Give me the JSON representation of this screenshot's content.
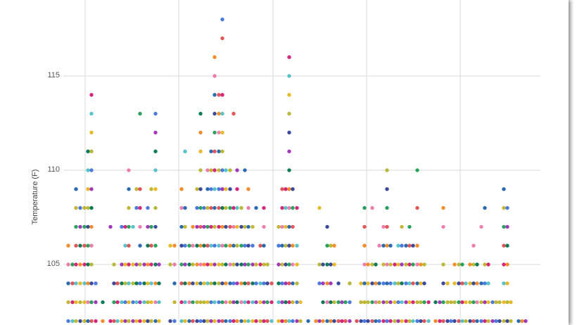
{
  "chart_data": {
    "type": "scatter",
    "ylabel": "Temperature (F)",
    "yticks": [
      105,
      110,
      115
    ],
    "ylim": [
      101.9,
      119.1
    ],
    "x_gridlines": 6,
    "grid": true,
    "colors": [
      "#4e79dd",
      "#e15759",
      "#f28e2b",
      "#e7ba2a",
      "#c2b635",
      "#2ca25f",
      "#0e7a5a",
      "#57c3c8",
      "#2b6cb0",
      "#3b4a99",
      "#a23ab8",
      "#d4287a",
      "#ec7fae",
      "#b8b83a"
    ],
    "columns": [
      {
        "x": 97,
        "values": [
          102,
          103,
          104,
          105,
          106
        ]
      },
      {
        "x": 103,
        "values": [
          102,
          103,
          104,
          105
        ]
      },
      {
        "x": 108,
        "values": [
          102,
          103,
          104,
          105,
          106,
          107,
          108,
          109
        ]
      },
      {
        "x": 114,
        "values": [
          102,
          103,
          104,
          105,
          106,
          107,
          108
        ]
      },
      {
        "x": 120,
        "values": [
          102,
          103,
          104,
          105,
          106,
          107,
          108
        ]
      },
      {
        "x": 125,
        "values": [
          102,
          103,
          104,
          105,
          106,
          107,
          108,
          109,
          110,
          111
        ]
      },
      {
        "x": 130,
        "values": [
          102,
          103,
          104,
          105,
          106,
          107,
          108,
          109,
          110,
          111,
          112,
          113,
          114
        ]
      },
      {
        "x": 136,
        "values": [
          102,
          103,
          104
        ]
      },
      {
        "x": 146,
        "values": [
          102,
          103
        ]
      },
      {
        "x": 157,
        "values": [
          102,
          107
        ]
      },
      {
        "x": 162,
        "values": [
          102,
          103,
          104,
          105
        ]
      },
      {
        "x": 167,
        "values": [
          102,
          103,
          104
        ]
      },
      {
        "x": 173,
        "values": [
          102,
          103,
          104,
          105,
          107
        ]
      },
      {
        "x": 178,
        "values": [
          102,
          103,
          104,
          105,
          106,
          107
        ]
      },
      {
        "x": 183,
        "values": [
          102,
          103,
          104,
          105,
          106,
          107,
          108,
          109,
          110
        ]
      },
      {
        "x": 189,
        "values": [
          102,
          103,
          104,
          105,
          107
        ]
      },
      {
        "x": 194,
        "values": [
          102,
          103,
          104,
          105,
          108,
          109
        ]
      },
      {
        "x": 199,
        "values": [
          102,
          103,
          104,
          105,
          106,
          107,
          108,
          109,
          113
        ]
      },
      {
        "x": 205,
        "values": [
          102,
          103,
          104,
          105
        ]
      },
      {
        "x": 210,
        "values": [
          102,
          103,
          104,
          105,
          106,
          107,
          108
        ]
      },
      {
        "x": 215,
        "values": [
          102,
          103,
          104,
          105,
          106,
          107,
          109
        ]
      },
      {
        "x": 221,
        "values": [
          102,
          103,
          104,
          105,
          106,
          107,
          108,
          109,
          110,
          111,
          112,
          113
        ]
      },
      {
        "x": 226,
        "values": [
          102,
          103,
          104,
          105
        ]
      },
      {
        "x": 242,
        "values": [
          102,
          105,
          106
        ]
      },
      {
        "x": 248,
        "values": [
          102,
          103,
          104,
          105,
          106
        ]
      },
      {
        "x": 258,
        "values": [
          102,
          103,
          104,
          105,
          106,
          107,
          108,
          109
        ]
      },
      {
        "x": 263,
        "values": [
          102,
          103,
          104,
          105,
          106,
          107,
          108,
          111
        ]
      },
      {
        "x": 269,
        "values": [
          102,
          103,
          104,
          105,
          106
        ]
      },
      {
        "x": 274,
        "values": [
          102,
          103,
          104,
          105,
          106,
          107
        ]
      },
      {
        "x": 280,
        "values": [
          102,
          103,
          104,
          105,
          106,
          107,
          108,
          109
        ]
      },
      {
        "x": 285,
        "values": [
          102,
          103,
          104,
          105,
          106,
          107,
          108,
          109,
          110,
          111,
          112,
          113
        ]
      },
      {
        "x": 290,
        "values": [
          102,
          103,
          104,
          105,
          106,
          107,
          108
        ]
      },
      {
        "x": 295,
        "values": [
          102,
          103,
          104,
          105,
          106,
          107,
          108,
          109,
          110
        ]
      },
      {
        "x": 300,
        "values": [
          102,
          103,
          104,
          105,
          106,
          107,
          108,
          109,
          110,
          111
        ]
      },
      {
        "x": 305,
        "values": [
          102,
          103,
          104,
          105,
          106,
          107,
          108,
          109,
          110,
          111,
          112,
          113,
          114,
          115,
          116
        ]
      },
      {
        "x": 311,
        "values": [
          102,
          103,
          104,
          105,
          106,
          107,
          108,
          109,
          110,
          111,
          112,
          113,
          114
        ]
      },
      {
        "x": 316,
        "values": [
          102,
          103,
          104,
          105,
          106,
          107,
          108,
          109,
          110,
          111,
          112,
          113,
          114,
          117,
          118
        ]
      },
      {
        "x": 321,
        "values": [
          102,
          103,
          104,
          105,
          106,
          107,
          108,
          109,
          110
        ]
      },
      {
        "x": 327,
        "values": [
          102,
          103,
          104,
          105,
          106,
          107,
          108,
          109,
          110
        ]
      },
      {
        "x": 332,
        "values": [
          102,
          103,
          104,
          105,
          106,
          107,
          108,
          113
        ]
      },
      {
        "x": 337,
        "values": [
          102,
          103,
          104,
          105,
          106,
          107,
          108,
          109,
          110
        ]
      },
      {
        "x": 343,
        "values": [
          102,
          103,
          104,
          105,
          106,
          107,
          108
        ]
      },
      {
        "x": 348,
        "values": [
          102,
          103,
          104,
          105,
          106,
          107,
          110
        ]
      },
      {
        "x": 353,
        "values": [
          102,
          103,
          104,
          105,
          106,
          107,
          108,
          109
        ]
      },
      {
        "x": 359,
        "values": [
          102,
          103,
          104,
          105,
          106,
          107
        ]
      },
      {
        "x": 364,
        "values": [
          102,
          103,
          104,
          105,
          108
        ]
      },
      {
        "x": 370,
        "values": [
          102,
          103,
          104,
          105,
          106
        ]
      },
      {
        "x": 375,
        "values": [
          102,
          103,
          104,
          105,
          106,
          107,
          108
        ]
      },
      {
        "x": 380,
        "values": [
          102,
          103,
          104,
          105
        ]
      },
      {
        "x": 386,
        "values": [
          102,
          103,
          104
        ]
      },
      {
        "x": 396,
        "values": [
          102,
          103,
          104,
          105,
          106,
          107
        ]
      },
      {
        "x": 401,
        "values": [
          102,
          103,
          104,
          105,
          106,
          107,
          108,
          109
        ]
      },
      {
        "x": 406,
        "values": [
          102,
          103,
          104,
          105,
          106,
          107,
          108,
          109
        ]
      },
      {
        "x": 411,
        "values": [
          102,
          103,
          104,
          105,
          106,
          107,
          108,
          109,
          110,
          111,
          112,
          113,
          114,
          115,
          116
        ]
      },
      {
        "x": 416,
        "values": [
          102,
          103,
          104,
          105,
          106,
          107,
          108,
          109
        ]
      },
      {
        "x": 422,
        "values": [
          102,
          103,
          104,
          105,
          106,
          108
        ]
      },
      {
        "x": 427,
        "values": [
          102,
          103
        ]
      },
      {
        "x": 438,
        "values": [
          102
        ]
      },
      {
        "x": 449,
        "values": [
          102
        ]
      },
      {
        "x": 454,
        "values": [
          102,
          104,
          105,
          108
        ]
      },
      {
        "x": 459,
        "values": [
          102,
          103,
          104,
          105
        ]
      },
      {
        "x": 465,
        "values": [
          102,
          103,
          104,
          105,
          106,
          107
        ]
      },
      {
        "x": 470,
        "values": [
          102,
          103,
          104,
          105,
          106
        ]
      },
      {
        "x": 475,
        "values": [
          102,
          103,
          105,
          106
        ]
      },
      {
        "x": 481,
        "values": [
          102,
          103,
          104
        ]
      },
      {
        "x": 486,
        "values": [
          102,
          103
        ]
      },
      {
        "x": 491,
        "values": [
          102,
          103
        ]
      },
      {
        "x": 497,
        "values": [
          102,
          103,
          104
        ]
      },
      {
        "x": 507,
        "values": [
          102
        ]
      },
      {
        "x": 513,
        "values": [
          102,
          103,
          104
        ]
      },
      {
        "x": 518,
        "values": [
          102,
          103,
          104,
          105,
          106,
          107,
          108
        ]
      },
      {
        "x": 523,
        "values": [
          102,
          103,
          104,
          105
        ]
      },
      {
        "x": 529,
        "values": [
          102,
          103,
          104,
          105,
          108
        ]
      },
      {
        "x": 534,
        "values": [
          102,
          103,
          104,
          105
        ]
      },
      {
        "x": 539,
        "values": [
          102,
          103,
          104,
          106
        ]
      },
      {
        "x": 545,
        "values": [
          102,
          103,
          104,
          105,
          106,
          107
        ]
      },
      {
        "x": 550,
        "values": [
          102,
          103,
          104,
          105,
          106,
          107,
          108,
          109,
          110
        ]
      },
      {
        "x": 555,
        "values": [
          102,
          103,
          104,
          105,
          106
        ]
      },
      {
        "x": 561,
        "values": [
          102,
          103,
          104,
          105
        ]
      },
      {
        "x": 566,
        "values": [
          102,
          103,
          104,
          105,
          106
        ]
      },
      {
        "x": 571,
        "values": [
          102,
          103,
          104,
          105,
          106,
          107
        ]
      },
      {
        "x": 577,
        "values": [
          102,
          103,
          104,
          105,
          106
        ]
      },
      {
        "x": 582,
        "values": [
          102,
          103,
          104,
          105,
          106,
          107
        ]
      },
      {
        "x": 587,
        "values": [
          102,
          103,
          104,
          105,
          106
        ]
      },
      {
        "x": 593,
        "values": [
          102,
          103,
          104,
          105,
          106,
          108,
          110
        ]
      },
      {
        "x": 598,
        "values": [
          102,
          103,
          104,
          105
        ]
      },
      {
        "x": 603,
        "values": [
          102,
          103,
          104,
          105
        ]
      },
      {
        "x": 609,
        "values": [
          102,
          103
        ]
      },
      {
        "x": 619,
        "values": [
          102,
          103
        ]
      },
      {
        "x": 625,
        "values": [
          102,
          103
        ]
      },
      {
        "x": 630,
        "values": [
          102,
          103,
          104,
          105,
          107,
          108
        ]
      },
      {
        "x": 636,
        "values": [
          102,
          103,
          104
        ]
      },
      {
        "x": 641,
        "values": [
          102,
          103
        ]
      },
      {
        "x": 646,
        "values": [
          102,
          103,
          104,
          105
        ]
      },
      {
        "x": 652,
        "values": [
          102,
          103,
          104,
          105
        ]
      },
      {
        "x": 657,
        "values": [
          102,
          103,
          104,
          105
        ]
      },
      {
        "x": 662,
        "values": [
          102,
          103,
          104
        ]
      },
      {
        "x": 668,
        "values": [
          102,
          103,
          104,
          105
        ]
      },
      {
        "x": 673,
        "values": [
          102,
          103,
          104,
          105,
          106
        ]
      },
      {
        "x": 678,
        "values": [
          102,
          103,
          104,
          105
        ]
      },
      {
        "x": 684,
        "values": [
          102,
          103,
          104,
          107
        ]
      },
      {
        "x": 689,
        "values": [
          102,
          103,
          104,
          105,
          108
        ]
      },
      {
        "x": 694,
        "values": [
          102,
          103,
          104,
          105
        ]
      },
      {
        "x": 700,
        "values": [
          102,
          103
        ]
      },
      {
        "x": 705,
        "values": [
          102,
          103
        ]
      },
      {
        "x": 710,
        "values": [
          102,
          103
        ]
      },
      {
        "x": 716,
        "values": [
          102,
          103,
          104,
          105,
          106,
          107,
          108,
          109
        ]
      },
      {
        "x": 721,
        "values": [
          102,
          103,
          104,
          105,
          106,
          107,
          108
        ]
      },
      {
        "x": 726,
        "values": [
          102,
          103
        ]
      },
      {
        "x": 737,
        "values": [
          102
        ]
      },
      {
        "x": 742,
        "values": [
          102
        ]
      },
      {
        "x": 747,
        "values": [
          102
        ]
      }
    ]
  }
}
